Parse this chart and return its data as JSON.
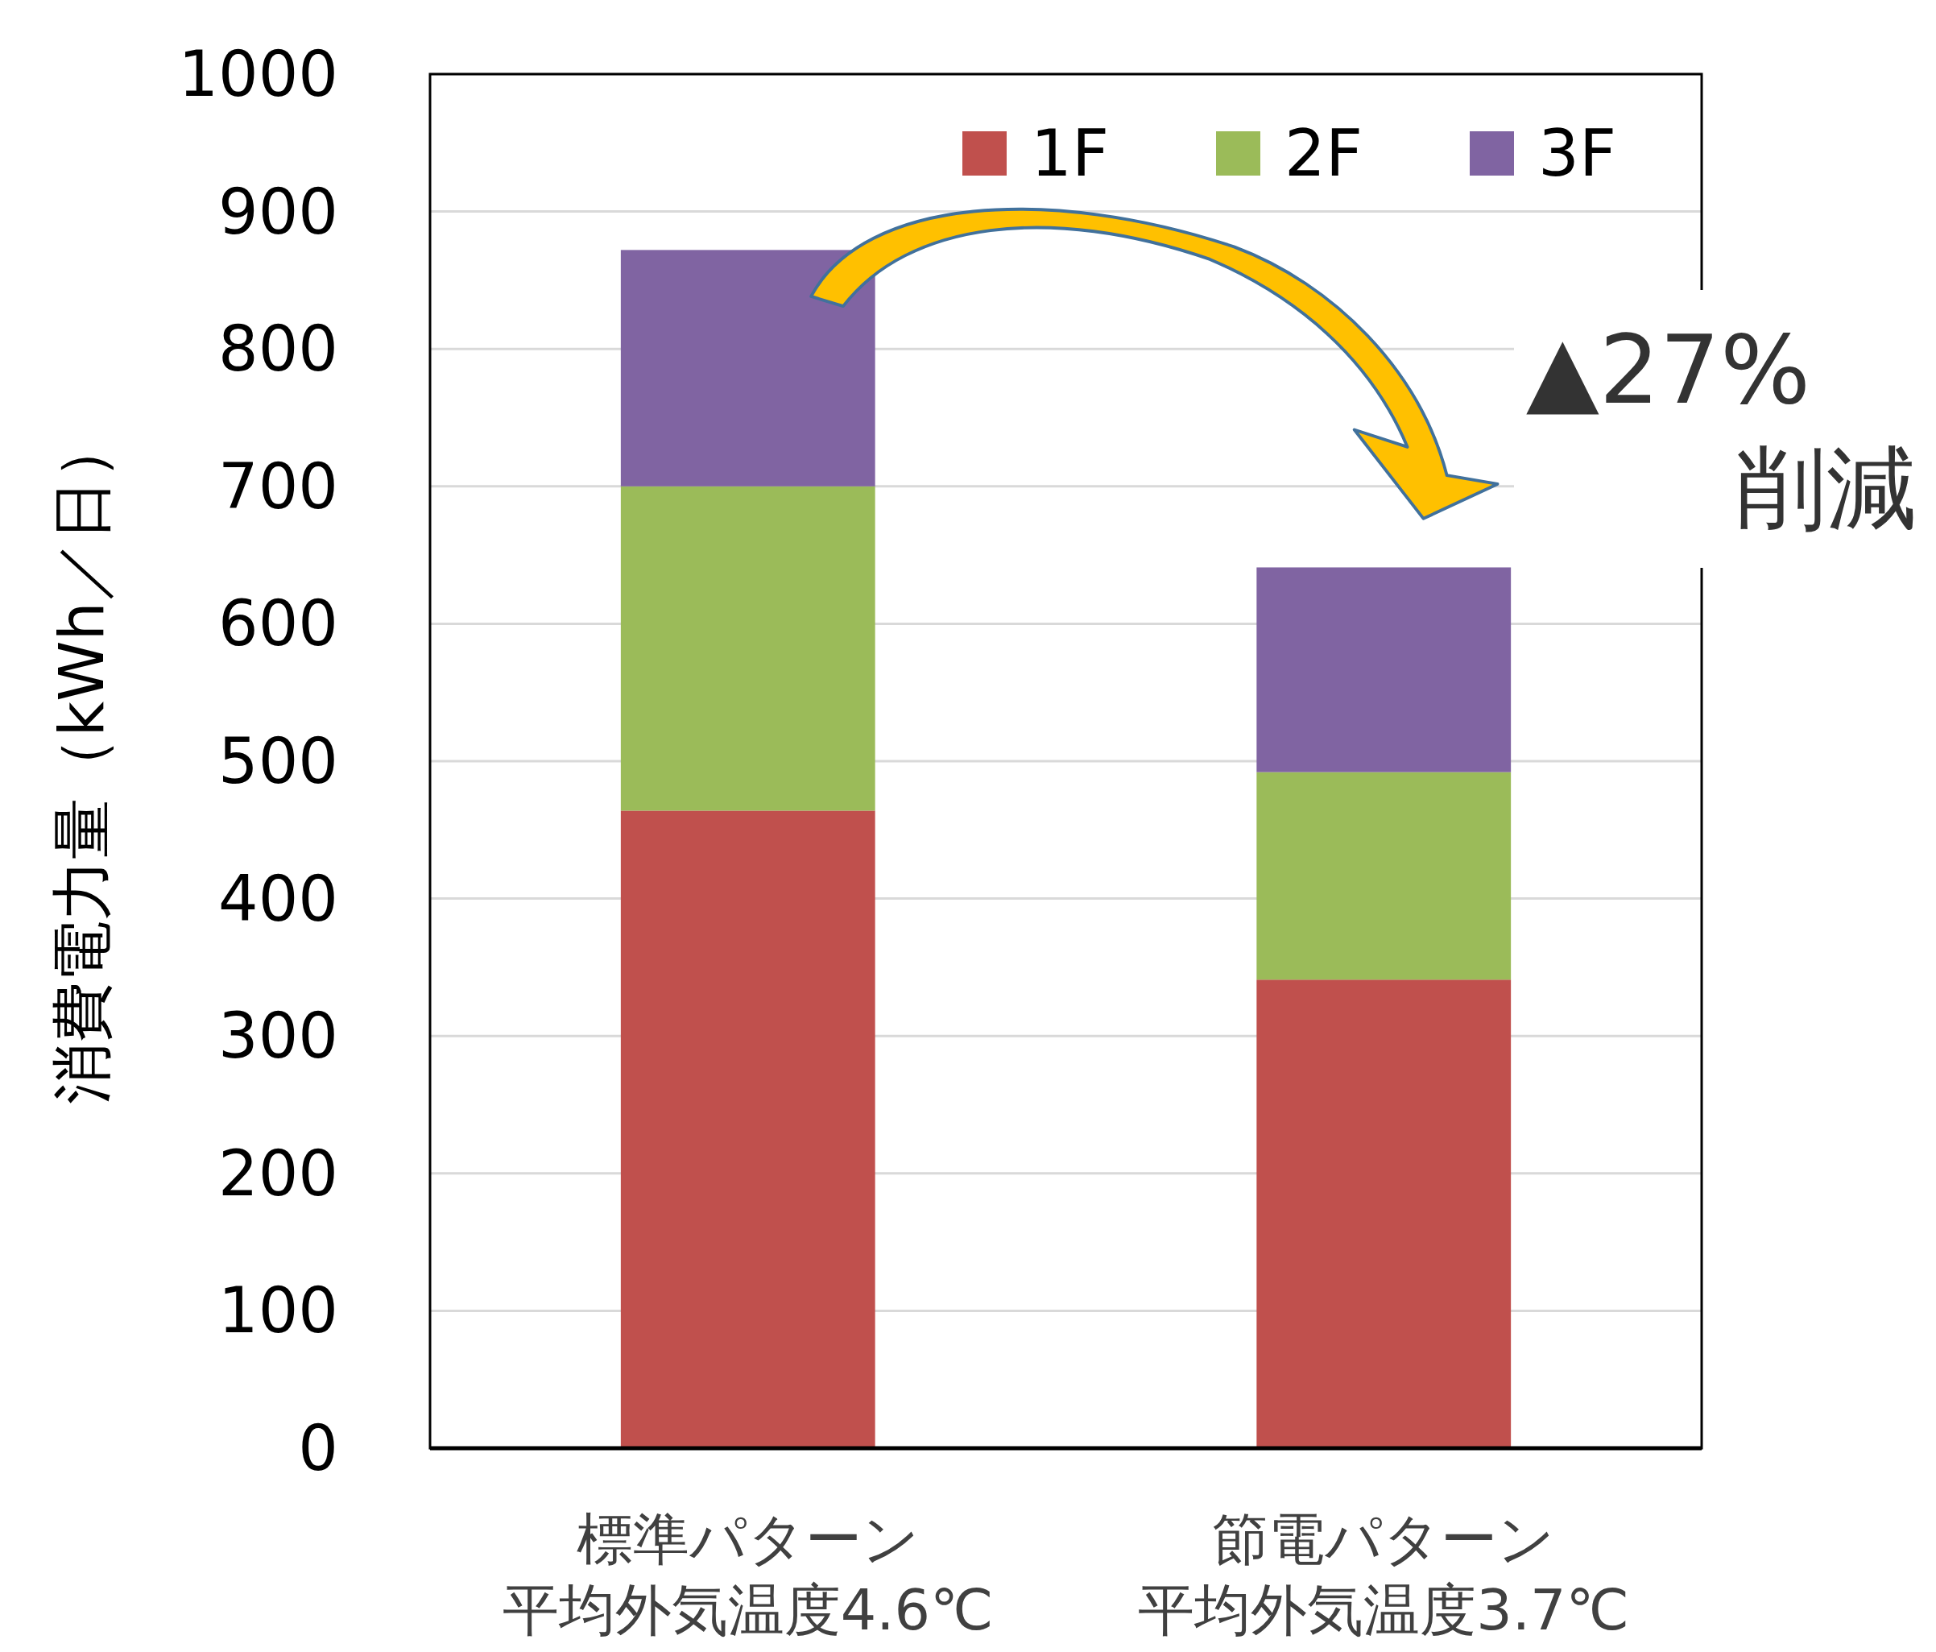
{
  "chart_data": {
    "type": "bar",
    "stacked": true,
    "ylabel": "消費電力量（kWh／日）",
    "categories": [
      "標準パターン平均外気温度4.6℃",
      "節電パターン平均外気温度3.7℃"
    ],
    "series": [
      {
        "name": "1F",
        "color": "#c0504d",
        "values": [
          464,
          341
        ]
      },
      {
        "name": "2F",
        "color": "#9bbb59",
        "values": [
          236,
          151
        ]
      },
      {
        "name": "3F",
        "color": "#8064a2",
        "values": [
          172,
          149
        ]
      }
    ],
    "ylim": [
      0,
      1000
    ],
    "yticks": [
      0,
      100,
      200,
      300,
      400,
      500,
      600,
      700,
      800,
      900,
      1000
    ],
    "grid": "y",
    "legend": "top right",
    "annotations": [
      "▲27%",
      "削減"
    ]
  }
}
